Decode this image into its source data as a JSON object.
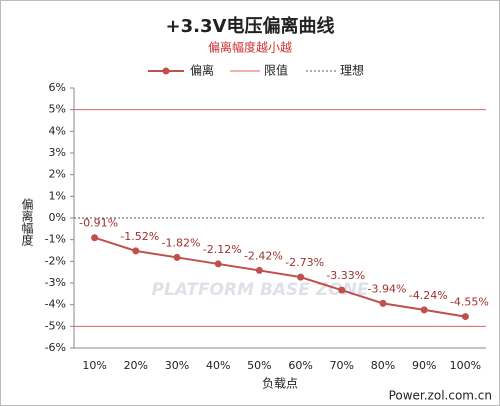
{
  "chart_data": {
    "type": "line",
    "title": "+3.3V电压偏离曲线",
    "subtitle": "偏离幅度越小越",
    "y_label": "偏离幅度",
    "x_label": "负载点",
    "watermark": "PLATFORM BASE ZONE",
    "source": "Power.zol.com.cn",
    "categories": [
      "10%",
      "20%",
      "30%",
      "40%",
      "50%",
      "60%",
      "70%",
      "80%",
      "90%",
      "100%"
    ],
    "series": [
      {
        "name": "偏离",
        "color": "#c0504d",
        "values": [
          -0.91,
          -1.52,
          -1.82,
          -2.12,
          -2.42,
          -2.73,
          -3.33,
          -3.94,
          -4.24,
          -4.55
        ],
        "value_labels": [
          "-0.91%",
          "-1.52%",
          "-1.82%",
          "-2.12%",
          "-2.42%",
          "-2.73%",
          "-3.33%",
          "-3.94%",
          "-4.24%",
          "-4.55%"
        ]
      }
    ],
    "reference_lines": [
      {
        "name": "限值",
        "color": "#e06060",
        "values": [
          5,
          -5
        ],
        "dashed": false
      },
      {
        "name": "理想",
        "color": "#555555",
        "values": [
          0
        ],
        "dashed": true
      }
    ],
    "ylim": [
      -6,
      6
    ],
    "yticks": [
      {
        "value": 6,
        "label": "6%"
      },
      {
        "value": 5,
        "label": "5%"
      },
      {
        "value": 4,
        "label": "4%"
      },
      {
        "value": 3,
        "label": "3%"
      },
      {
        "value": 2,
        "label": "2%"
      },
      {
        "value": 1,
        "label": "1%"
      },
      {
        "value": 0,
        "label": "0%"
      },
      {
        "value": -1,
        "label": "-1%"
      },
      {
        "value": -2,
        "label": "-2%"
      },
      {
        "value": -3,
        "label": "-3%"
      },
      {
        "value": -4,
        "label": "-4%"
      },
      {
        "value": -5,
        "label": "-5%"
      },
      {
        "value": -6,
        "label": "-6%"
      }
    ],
    "grid": false
  }
}
